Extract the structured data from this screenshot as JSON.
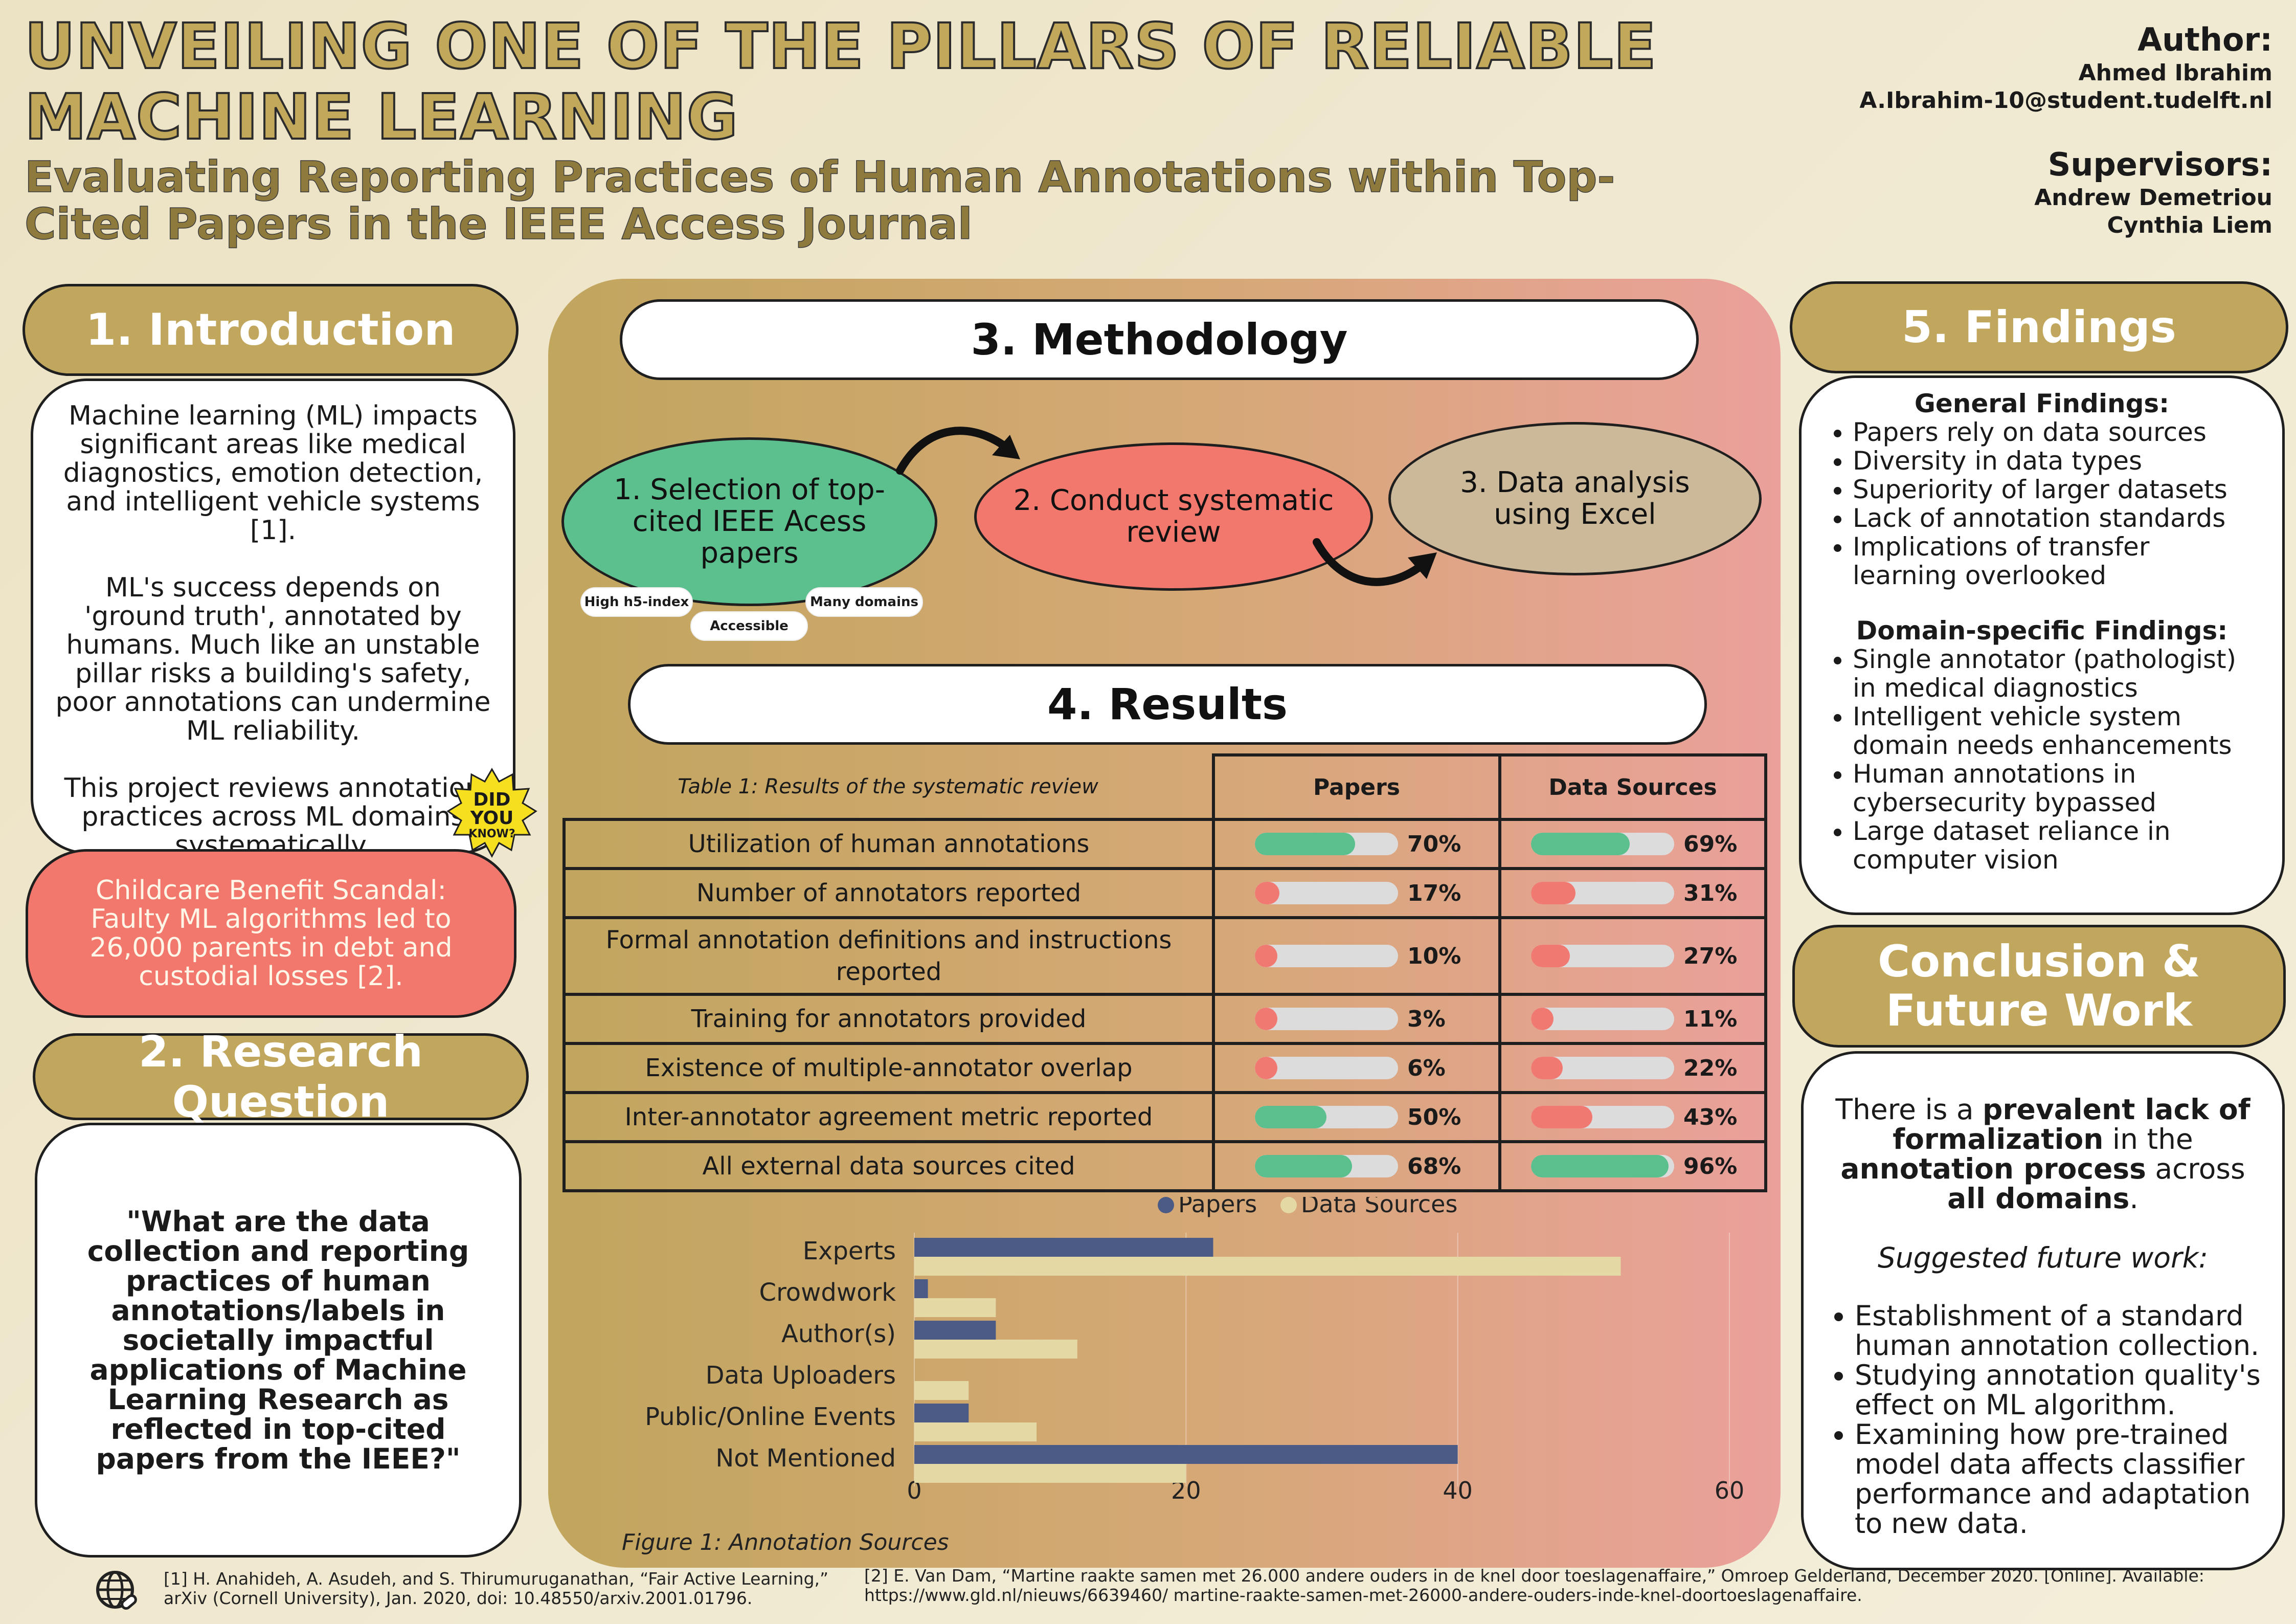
{
  "header": {
    "title": "UNVEILING ONE OF THE PILLARS OF RELIABLE MACHINE LEARNING",
    "subtitle": "Evaluating Reporting Practices of Human Annotations within Top-Cited Papers in the IEEE Access Journal"
  },
  "author": {
    "label": "Author:",
    "name": "Ahmed Ibrahim",
    "email": "A.Ibrahim-10@student.tudelft.nl",
    "supervisors_label": "Supervisors:",
    "supervisors": [
      "Andrew Demetriou",
      "Cynthia Liem"
    ]
  },
  "introduction": {
    "heading": "1. Introduction",
    "paragraphs": [
      "Machine learning (ML) impacts significant areas like medical diagnostics, emotion detection, and intelligent vehicle systems [1].",
      "ML's success depends on 'ground truth', annotated by humans. Much like an unstable pillar risks a building's safety, poor annotations can undermine ML reliability.",
      "This project reviews annotation practices across ML domains systematically."
    ],
    "did_you_know": [
      "DID",
      "YOU",
      "KNOW?"
    ],
    "fact": "Childcare Benefit Scandal: Faulty ML algorithms led to 26,000 parents in debt and custodial losses [2]."
  },
  "research_question": {
    "heading": "2. Research Question",
    "question": "\"What are the data collection and reporting practices of human annotations/labels in societally impactful applications of Machine Learning Research as reflected in top-cited papers from the IEEE?\""
  },
  "methodology": {
    "heading": "3. Methodology",
    "steps": [
      "1. Selection of top-cited IEEE Acess papers",
      "2. Conduct systematic review",
      "3. Data analysis using Excel"
    ],
    "tags": [
      "High h5-index",
      "Accessible",
      "Many domains"
    ]
  },
  "results": {
    "heading": "4. Results",
    "table_caption": "Table 1: Results of the systematic review",
    "col_papers": "Papers",
    "col_sources": "Data Sources",
    "rows": [
      {
        "label": "Utilization of human annotations",
        "papers": 70,
        "papers_label": "70%",
        "sources": 69,
        "sources_label": "69%"
      },
      {
        "label": "Number of annotators reported",
        "papers": 17,
        "papers_label": "17%",
        "sources": 31,
        "sources_label": "31%"
      },
      {
        "label": "Formal annotation definitions and instructions reported",
        "papers": 10,
        "papers_label": "10%",
        "sources": 27,
        "sources_label": "27%"
      },
      {
        "label": "Training for annotators provided",
        "papers": 3,
        "papers_label": "3%",
        "sources": 11,
        "sources_label": "11%"
      },
      {
        "label": "Existence of multiple-annotator overlap",
        "papers": 6,
        "papers_label": "6%",
        "sources": 22,
        "sources_label": "22%"
      },
      {
        "label": "Inter-annotator agreement metric reported",
        "papers": 50,
        "papers_label": "50%",
        "sources": 43,
        "sources_label": "43%"
      },
      {
        "label": "All external data sources cited",
        "papers": 68,
        "papers_label": "68%",
        "sources": 96,
        "sources_label": "96%"
      }
    ],
    "colors": {
      "high": "#5bbf8e",
      "low": "#f07a72",
      "track": "#dcdcdc"
    }
  },
  "chart_data": {
    "type": "bar",
    "orientation": "horizontal",
    "title": "Figure 1: Annotation Sources",
    "categories": [
      "Experts",
      "Crowdwork",
      "Author(s)",
      "Data Uploaders",
      "Public/Online Events",
      "Not Mentioned"
    ],
    "series": [
      {
        "name": "Papers",
        "color": "#4c5a86",
        "values": [
          22,
          1,
          6,
          0,
          4,
          40
        ]
      },
      {
        "name": "Data Sources",
        "color": "#e4d8a4",
        "values": [
          52,
          6,
          12,
          4,
          9,
          20
        ]
      }
    ],
    "xlim": [
      0,
      60
    ],
    "xticks": [
      0,
      20,
      40,
      60
    ],
    "legend": "top",
    "grid": true
  },
  "findings": {
    "heading": "5. Findings",
    "general_title": "General Findings:",
    "general": [
      "Papers rely on data sources",
      "Diversity in data types",
      "Superiority of larger datasets",
      "Lack of annotation standards",
      "Implications of transfer learning overlooked"
    ],
    "domain_title": "Domain-specific Findings:",
    "domain": [
      "Single annotator (pathologist) in medical diagnostics",
      "Intelligent vehicle system domain needs enhancements",
      "Human annotations in cybersecurity bypassed",
      "Large dataset reliance in computer vision"
    ]
  },
  "conclusion": {
    "heading": "Conclusion & Future Work",
    "p1_a": "There is a ",
    "p1_b": "prevalent lack of formalization",
    "p1_c": " in the ",
    "p1_d": "annotation process",
    "p1_e": " across ",
    "p1_f": "all domains",
    "p1_g": ".",
    "future_title": "Suggested future work:",
    "future": [
      "Establishment of a standard human annotation collection.",
      "Studying annotation quality's effect on ML algorithm.",
      "Examining how pre-trained model data affects classifier performance and adaptation to new data."
    ]
  },
  "footer": {
    "ref1": "[1] H. Anahideh, A. Asudeh, and S. Thirumuruganathan, “Fair Active Learning,” arXiv (Cornell University), Jan. 2020, doi: 10.48550/arxiv.2001.01796.",
    "ref2": "[2] E. Van Dam, “Martine raakte samen met 26.000 andere ouders in de knel door toeslagenaffaire,” Omroep Gelderland, December 2020. [Online]. Available: https://www.gld.nl/nieuws/6639460/ martine-raakte-samen-met-26000-andere-ouders-inde-knel-doortoeslagenaffaire."
  }
}
